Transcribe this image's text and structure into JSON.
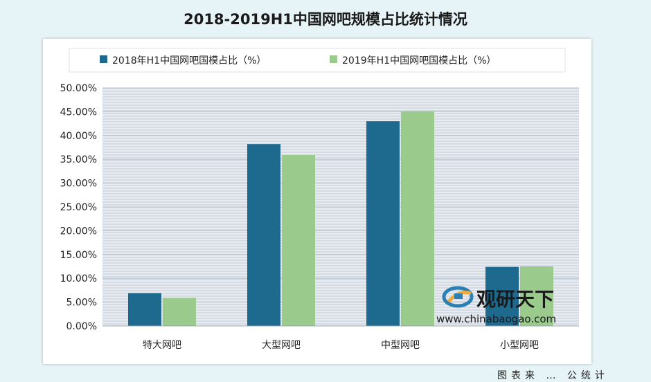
{
  "chart_data": {
    "type": "bar",
    "title": "2018-2019H1中国网吧规模占比统计情况",
    "categories": [
      "特大网吧",
      "大型网吧",
      "中型网吧",
      "小型网吧"
    ],
    "series": [
      {
        "name": "2018年H1中国网吧国模占比（%）",
        "values": [
          6.9,
          38.2,
          43.0,
          12.4
        ]
      },
      {
        "name": "2019年H1中国网吧国模占比（%）",
        "values": [
          5.9,
          35.9,
          45.1,
          12.5
        ]
      }
    ],
    "ylim": [
      0,
      50
    ],
    "yticks": [
      "0.00%",
      "5.00%",
      "10.00%",
      "15.00%",
      "20.00%",
      "25.00%",
      "30.00%",
      "35.00%",
      "40.00%",
      "45.00%",
      "50.00%"
    ],
    "xlabel": "",
    "ylabel": "",
    "legend_position": "top",
    "grid": true,
    "colors": [
      "#1e6a8e",
      "#9bcb8c"
    ]
  },
  "watermark": {
    "brand": "观研天下",
    "url": "www.chinabaogao.com"
  },
  "footer_fragment": "图表来 … 公统计"
}
